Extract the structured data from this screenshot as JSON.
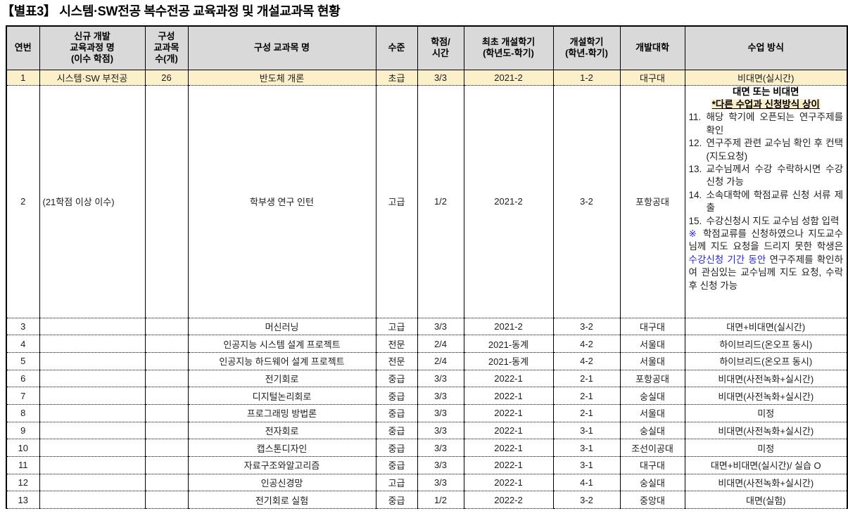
{
  "title": "【별표3】 시스템·SW전공 복수전공 교육과정 및 개설교과목 현황",
  "colors": {
    "header_bg": "#D9D9D9",
    "row_highlight_bg": "#FBF0C9",
    "notice_highlight_bg": "#FBF0C9",
    "blue_text": "#2424E8",
    "border": "#000000"
  },
  "table": {
    "columns": [
      {
        "label": "연번"
      },
      {
        "label": "신규 개발\n교육과정 명\n(이수 학점)"
      },
      {
        "label": "구성\n교과목\n수(개)"
      },
      {
        "label": "구성 교과목 명"
      },
      {
        "label": "수준"
      },
      {
        "label": "학점/\n시간"
      },
      {
        "label": "최초 개설학기\n(학년도-학기)"
      },
      {
        "label": "개설학기\n(학년-학기)"
      },
      {
        "label": "개발대학"
      },
      {
        "label": "수업 방식"
      }
    ],
    "rows": [
      {
        "no": "1",
        "program": "시스템·SW 부전공",
        "count": "26",
        "course": "반도체 개론",
        "level": "초급",
        "credit": "3/3",
        "first": "2021-2",
        "semester": "1-2",
        "univ": "대구대",
        "method": "비대면(실시간)",
        "highlight": true
      },
      {
        "no": "2",
        "program": "(21학점 이상 이수)",
        "count": "",
        "course": "학부생 연구 인턴",
        "level": "고급",
        "credit": "1/2",
        "first": "2021-2",
        "semester": "3-2",
        "univ": "포항공대",
        "method": "",
        "method_rich": true
      },
      {
        "no": "3",
        "program": "",
        "count": "",
        "course": "머신러닝",
        "level": "고급",
        "credit": "3/3",
        "first": "2021-2",
        "semester": "3-2",
        "univ": "대구대",
        "method": "대면+비대면(실시간)"
      },
      {
        "no": "4",
        "program": "",
        "count": "",
        "course": "인공지능 시스템 설계 프로젝트",
        "level": "전문",
        "credit": "2/4",
        "first": "2021-동계",
        "semester": "4-2",
        "univ": "서울대",
        "method": "하이브리드(온오프 동시)"
      },
      {
        "no": "5",
        "program": "",
        "count": "",
        "course": "인공지능 하드웨어 설계 프로젝트",
        "level": "전문",
        "credit": "2/4",
        "first": "2021-동계",
        "semester": "4-2",
        "univ": "서울대",
        "method": "하이브리드(온오프 동시)"
      },
      {
        "no": "6",
        "program": "",
        "count": "",
        "course": "전기회로",
        "level": "중급",
        "credit": "3/3",
        "first": "2022-1",
        "semester": "2-1",
        "univ": "포항공대",
        "method": "비대면(사전녹화+실시간)"
      },
      {
        "no": "7",
        "program": "",
        "count": "",
        "course": "디지털논리회로",
        "level": "중급",
        "credit": "3/3",
        "first": "2022-1",
        "semester": "2-1",
        "univ": "숭실대",
        "method": "비대면(사전녹화+실시간)"
      },
      {
        "no": "8",
        "program": "",
        "count": "",
        "course": "프로그래밍 방법론",
        "level": "중급",
        "credit": "3/3",
        "first": "2022-1",
        "semester": "2-1",
        "univ": "서울대",
        "method": "미정"
      },
      {
        "no": "9",
        "program": "",
        "count": "",
        "course": "전자회로",
        "level": "중급",
        "credit": "3/3",
        "first": "2022-1",
        "semester": "3-1",
        "univ": "숭실대",
        "method": "비대면(사전녹화+실시간)"
      },
      {
        "no": "10",
        "program": "",
        "count": "",
        "course": "캡스톤디자인",
        "level": "중급",
        "credit": "3/3",
        "first": "2022-1",
        "semester": "3-1",
        "univ": "조선이공대",
        "method": "미정"
      },
      {
        "no": "11",
        "program": "",
        "count": "",
        "course": "자료구조와알고리즘",
        "level": "중급",
        "credit": "3/3",
        "first": "2022-1",
        "semester": "3-1",
        "univ": "대구대",
        "method": "대면+비대면(실시간)/ 실습 O"
      },
      {
        "no": "12",
        "program": "",
        "count": "",
        "course": "인공신경망",
        "level": "고급",
        "credit": "3/3",
        "first": "2022-1",
        "semester": "4-1",
        "univ": "숭실대",
        "method": "비대면(사전녹화+실시간)"
      },
      {
        "no": "13",
        "program": "",
        "count": "",
        "course": "전기회로 실험",
        "level": "중급",
        "credit": "1/2",
        "first": "2022-2",
        "semester": "3-2",
        "univ": "중앙대",
        "method": "대면(실험)"
      }
    ],
    "row2_method": {
      "headline": "대면 또는 비대면",
      "notice": "*다른 수업과 신청방식 상이",
      "steps": [
        {
          "num": "11.",
          "text": "해당 학기에 오픈되는 연구주제를 확인"
        },
        {
          "num": "12.",
          "text": "연구주제 관련 교수님 확인 후 컨택(지도요청)"
        },
        {
          "num": "13.",
          "text": "교수님께서 수강 수락하시면 수강신청 가능"
        },
        {
          "num": "14.",
          "text": "소속대학에 학점교류 신청 서류 제출"
        },
        {
          "num": "15.",
          "text": "수강신청시 지도 교수님 성함 입력"
        }
      ],
      "note_marker": "※",
      "note_pre": " 학점교류를 신청하였으나 지도교수님께 지도 요청을 드리지 못한 학생은 ",
      "note_blue": "수강신청 기간 동안",
      "note_post": " 연구주제를 확인하여 관심있는 교수님께 지도 요청, 수락 후 신청 가능"
    }
  }
}
